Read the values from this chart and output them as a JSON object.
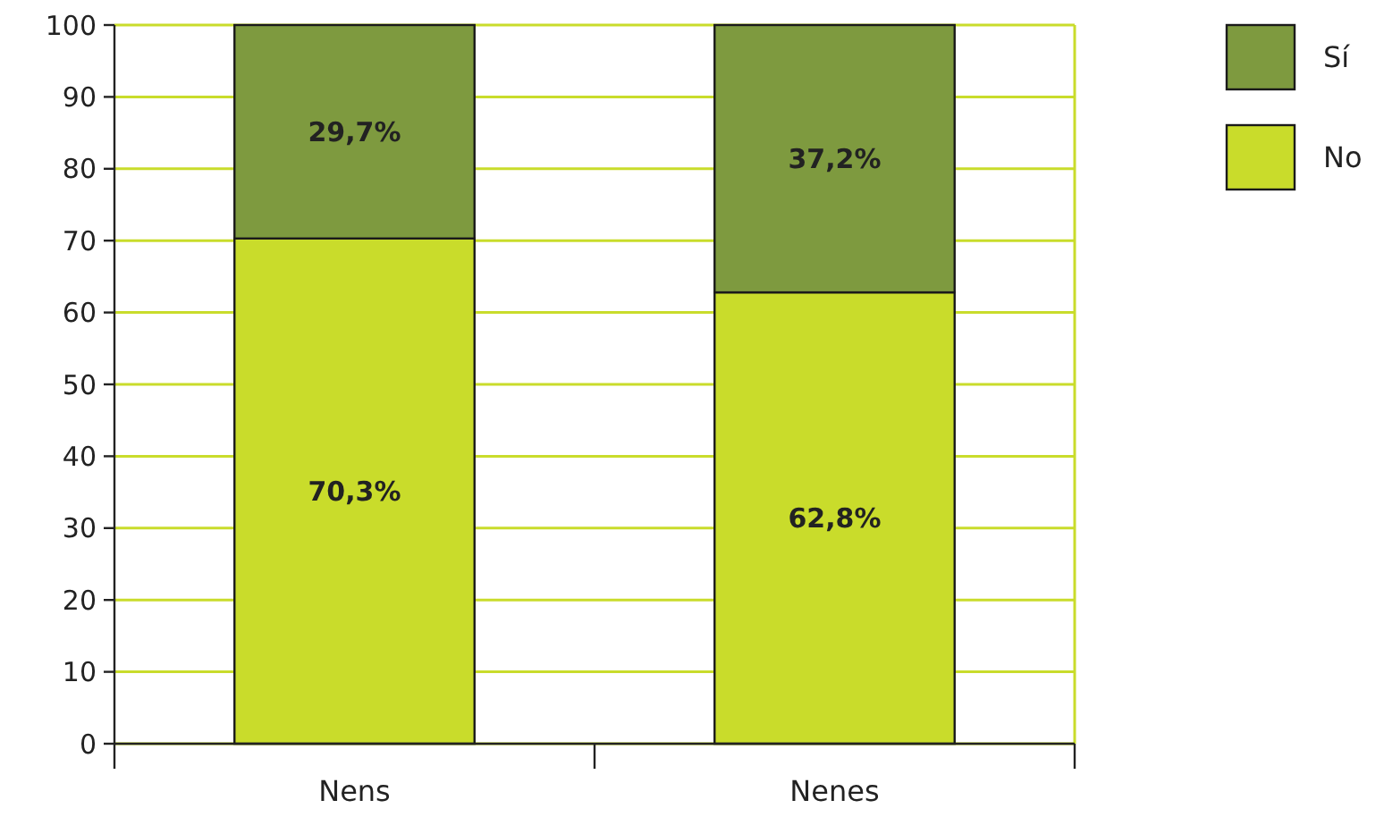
{
  "chart_data": {
    "type": "bar",
    "stacked": true,
    "categories": [
      "Nens",
      "Nenes"
    ],
    "series": [
      {
        "name": "No",
        "color": "#c9dc2b",
        "values": [
          70.3,
          62.8
        ],
        "value_labels": [
          "70,3%",
          "62,8%"
        ]
      },
      {
        "name": "Sí",
        "color": "#7e9a3f",
        "values": [
          29.7,
          37.2
        ],
        "value_labels": [
          "29,7%",
          "37,2%"
        ]
      }
    ],
    "ylim": [
      0,
      100
    ],
    "yticks": [
      0,
      10,
      20,
      30,
      40,
      50,
      60,
      70,
      80,
      90,
      100
    ],
    "grid": "y",
    "legend": "top right"
  }
}
